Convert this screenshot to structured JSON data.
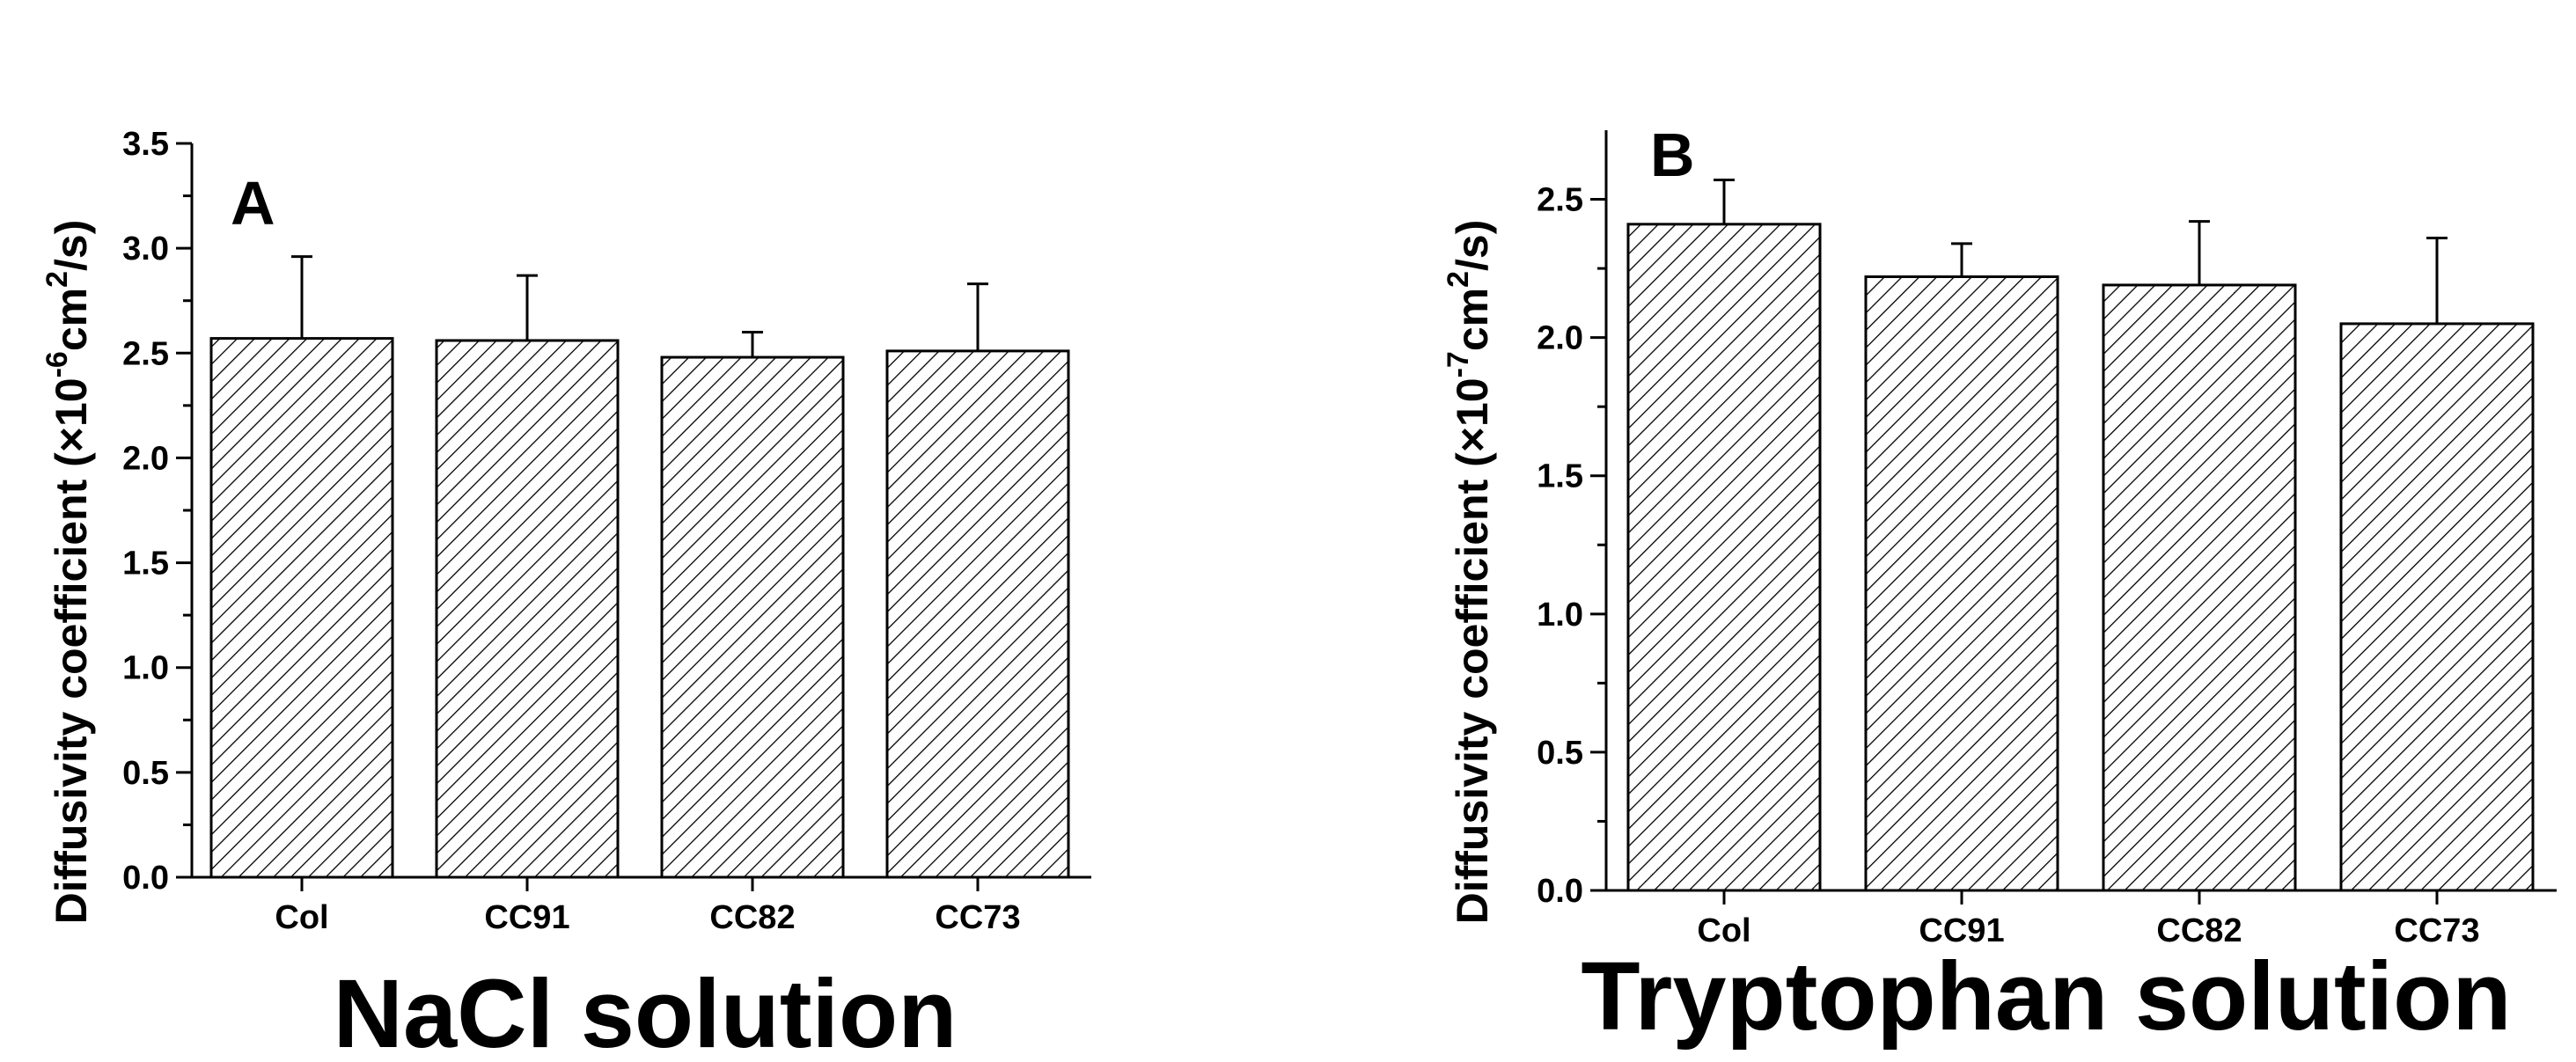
{
  "chart_data": [
    {
      "type": "bar",
      "panel_label": "A",
      "title": "",
      "categories": [
        "Col",
        "CC91",
        "CC82",
        "CC73"
      ],
      "values": [
        2.57,
        2.56,
        2.48,
        2.51
      ],
      "errors": [
        0.39,
        0.31,
        0.12,
        0.32
      ],
      "xlabel": "NaCl solution",
      "ylabel": {
        "prefix": "Diffusivity coefficient (×10",
        "exponent": "-6",
        "unit": "cm",
        "unit_exp": "2",
        "suffix": "/s)"
      },
      "ylim": [
        0,
        3.5
      ],
      "yticks": [
        "0.0",
        "0.5",
        "1.0",
        "1.5",
        "2.0",
        "2.5",
        "3.0",
        "3.5"
      ],
      "fill": "diagonal hatch",
      "grid": false
    },
    {
      "type": "bar",
      "panel_label": "B",
      "title": "",
      "categories": [
        "Col",
        "CC91",
        "CC82",
        "CC73"
      ],
      "values": [
        2.41,
        2.22,
        2.19,
        2.05
      ],
      "errors": [
        0.16,
        0.12,
        0.23,
        0.31
      ],
      "xlabel": "Tryptophan solution",
      "ylabel": {
        "prefix": "Diffusivity coefficient (×10",
        "exponent": "-7",
        "unit": "cm",
        "unit_exp": "2",
        "suffix": "/s)"
      },
      "ylim": [
        0,
        2.75
      ],
      "yticks": [
        "0.0",
        "0.5",
        "1.0",
        "1.5",
        "2.0",
        "2.5"
      ],
      "fill": "diagonal hatch",
      "grid": false
    }
  ],
  "colors": {
    "ink": "#000000",
    "bar_fill": "#ffffff"
  }
}
